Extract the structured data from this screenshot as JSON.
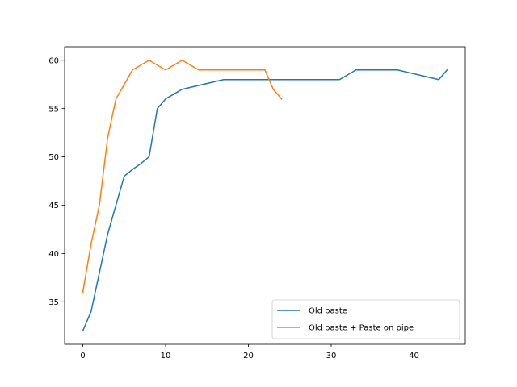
{
  "chart_data": {
    "type": "line",
    "title": "",
    "xlabel": "",
    "ylabel": "",
    "xlim": [
      -2.2,
      46.2
    ],
    "ylim": [
      30.6,
      61.4
    ],
    "xticks": [
      0,
      10,
      20,
      30,
      40
    ],
    "yticks": [
      35,
      40,
      45,
      50,
      55,
      60
    ],
    "grid": false,
    "legend_position": "lower-right",
    "series": [
      {
        "name": "Old paste",
        "color": "#1f77b4",
        "x": [
          0,
          1,
          2,
          3,
          4,
          5,
          6,
          7,
          8,
          9,
          10,
          12,
          17,
          22,
          26,
          31,
          33,
          38,
          43,
          44
        ],
        "y": [
          32,
          34,
          38,
          42,
          45,
          48,
          48.7,
          49.3,
          50,
          55,
          56,
          57,
          58,
          58,
          58,
          58,
          59,
          59,
          58,
          59
        ]
      },
      {
        "name": "Old paste + Paste on pipe",
        "color": "#ff7f0e",
        "x": [
          0,
          1,
          2,
          3,
          4,
          6,
          8,
          10,
          12,
          14,
          22,
          23,
          24
        ],
        "y": [
          36,
          41,
          45,
          52,
          56,
          59,
          60,
          59,
          60,
          59,
          59,
          57,
          56
        ]
      }
    ]
  }
}
